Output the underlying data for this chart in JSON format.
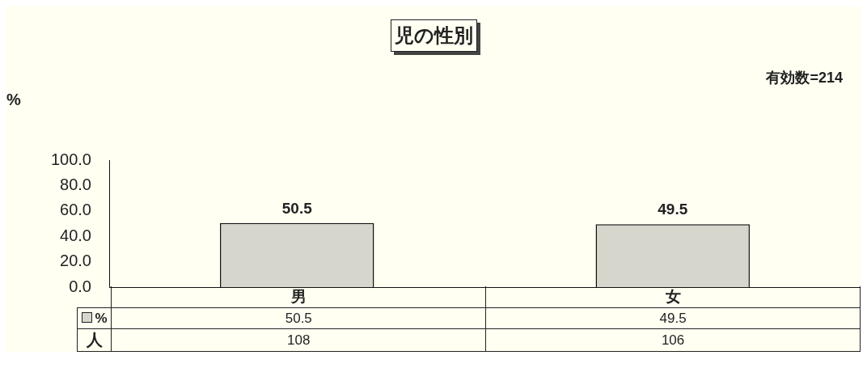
{
  "chart_data": {
    "type": "bar",
    "title": "児の性別",
    "ylabel": "%",
    "categories": [
      "男",
      "女"
    ],
    "series": [
      {
        "name": "%",
        "color": "#d6d6cc",
        "values": [
          50.5,
          49.5
        ],
        "value_labels": [
          "50.5",
          "49.5"
        ]
      }
    ],
    "ylim": [
      0,
      100
    ],
    "yticks": [
      {
        "value": 0,
        "label": "0.0"
      },
      {
        "value": 20,
        "label": "20.0"
      },
      {
        "value": 40,
        "label": "40.0"
      },
      {
        "value": 60,
        "label": "60.0"
      },
      {
        "value": 80,
        "label": "80.0"
      },
      {
        "value": 100,
        "label": "100.0"
      }
    ],
    "grid": false,
    "legend": "bottom",
    "annotations": [
      "有効数=214",
      "50.5",
      "49.5",
      "人",
      "108",
      "106"
    ]
  }
}
